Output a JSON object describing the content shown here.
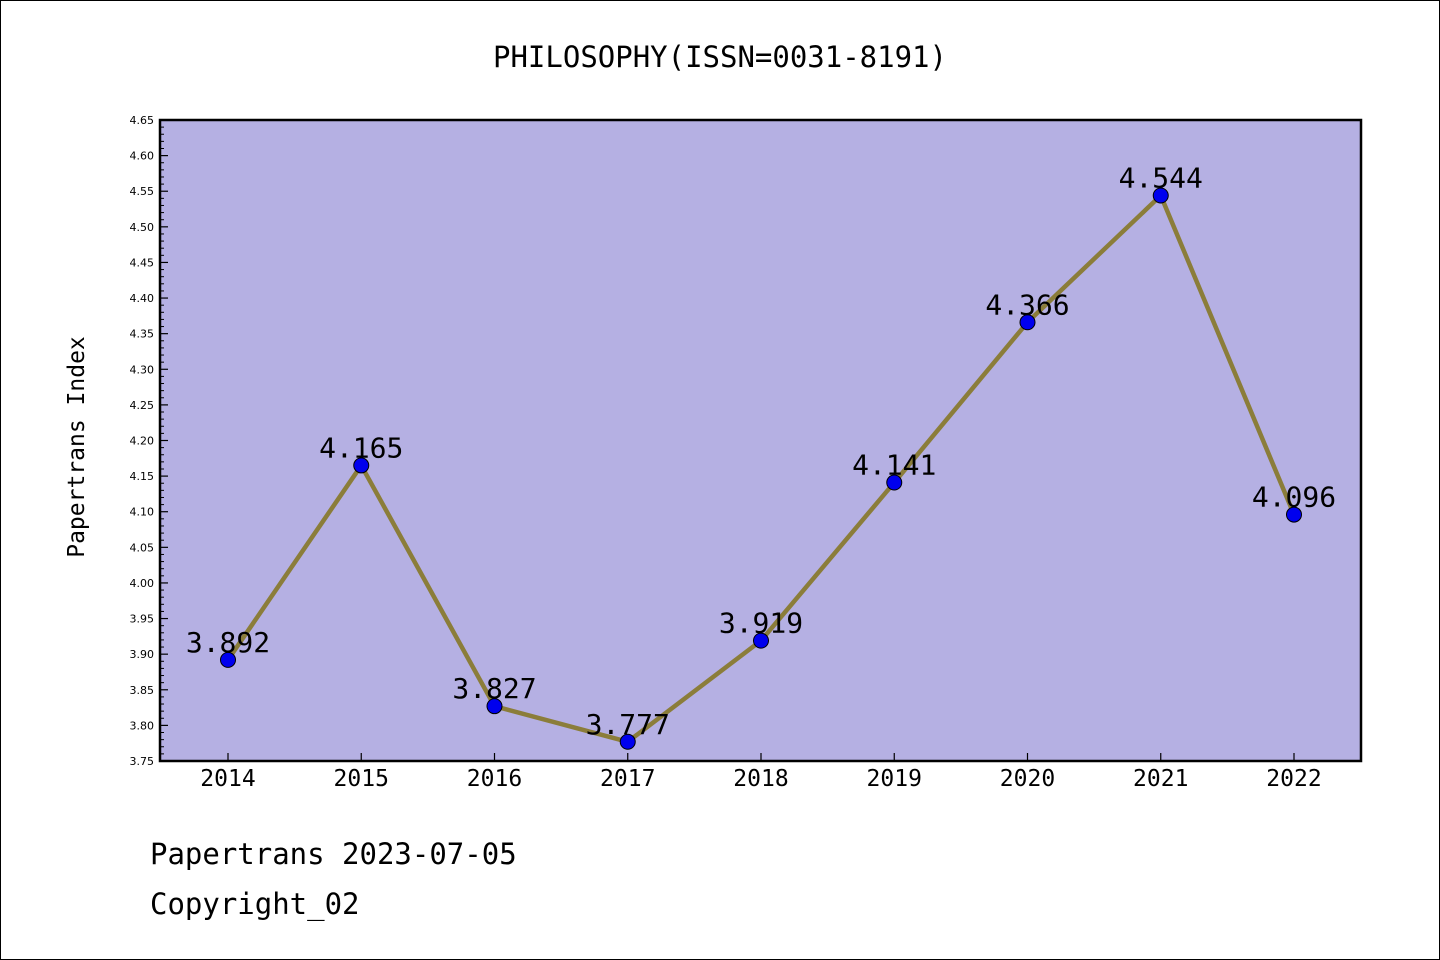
{
  "chart_data": {
    "type": "line",
    "title": "PHILOSOPHY(ISSN=0031-8191)",
    "xlabel": "",
    "ylabel": "Papertrans Index",
    "x": [
      "2014",
      "2015",
      "2016",
      "2017",
      "2018",
      "2019",
      "2020",
      "2021",
      "2022"
    ],
    "series": [
      {
        "values": [
          3.892,
          4.165,
          3.827,
          3.777,
          3.919,
          4.141,
          4.366,
          4.544,
          4.096
        ],
        "labels": [
          "3.892",
          "4.165",
          "3.827",
          "3.777",
          "3.919",
          "4.141",
          "4.366",
          "4.544",
          "4.096"
        ],
        "line_color": "#8b7d3a",
        "marker_color": "#0000ee"
      }
    ],
    "ylim": [
      3.75,
      4.65
    ],
    "yticks": [
      "3.75",
      "3.80",
      "3.85",
      "3.90",
      "3.95",
      "4.00",
      "4.05",
      "4.10",
      "4.15",
      "4.20",
      "4.25",
      "4.30",
      "4.35",
      "4.40",
      "4.45",
      "4.50",
      "4.55",
      "4.60",
      "4.65"
    ],
    "grid": false,
    "legend": "none",
    "plot_background": "#b5b0e3"
  },
  "footer": {
    "line1": "Papertrans 2023-07-05",
    "line2": "Copyright_02"
  }
}
